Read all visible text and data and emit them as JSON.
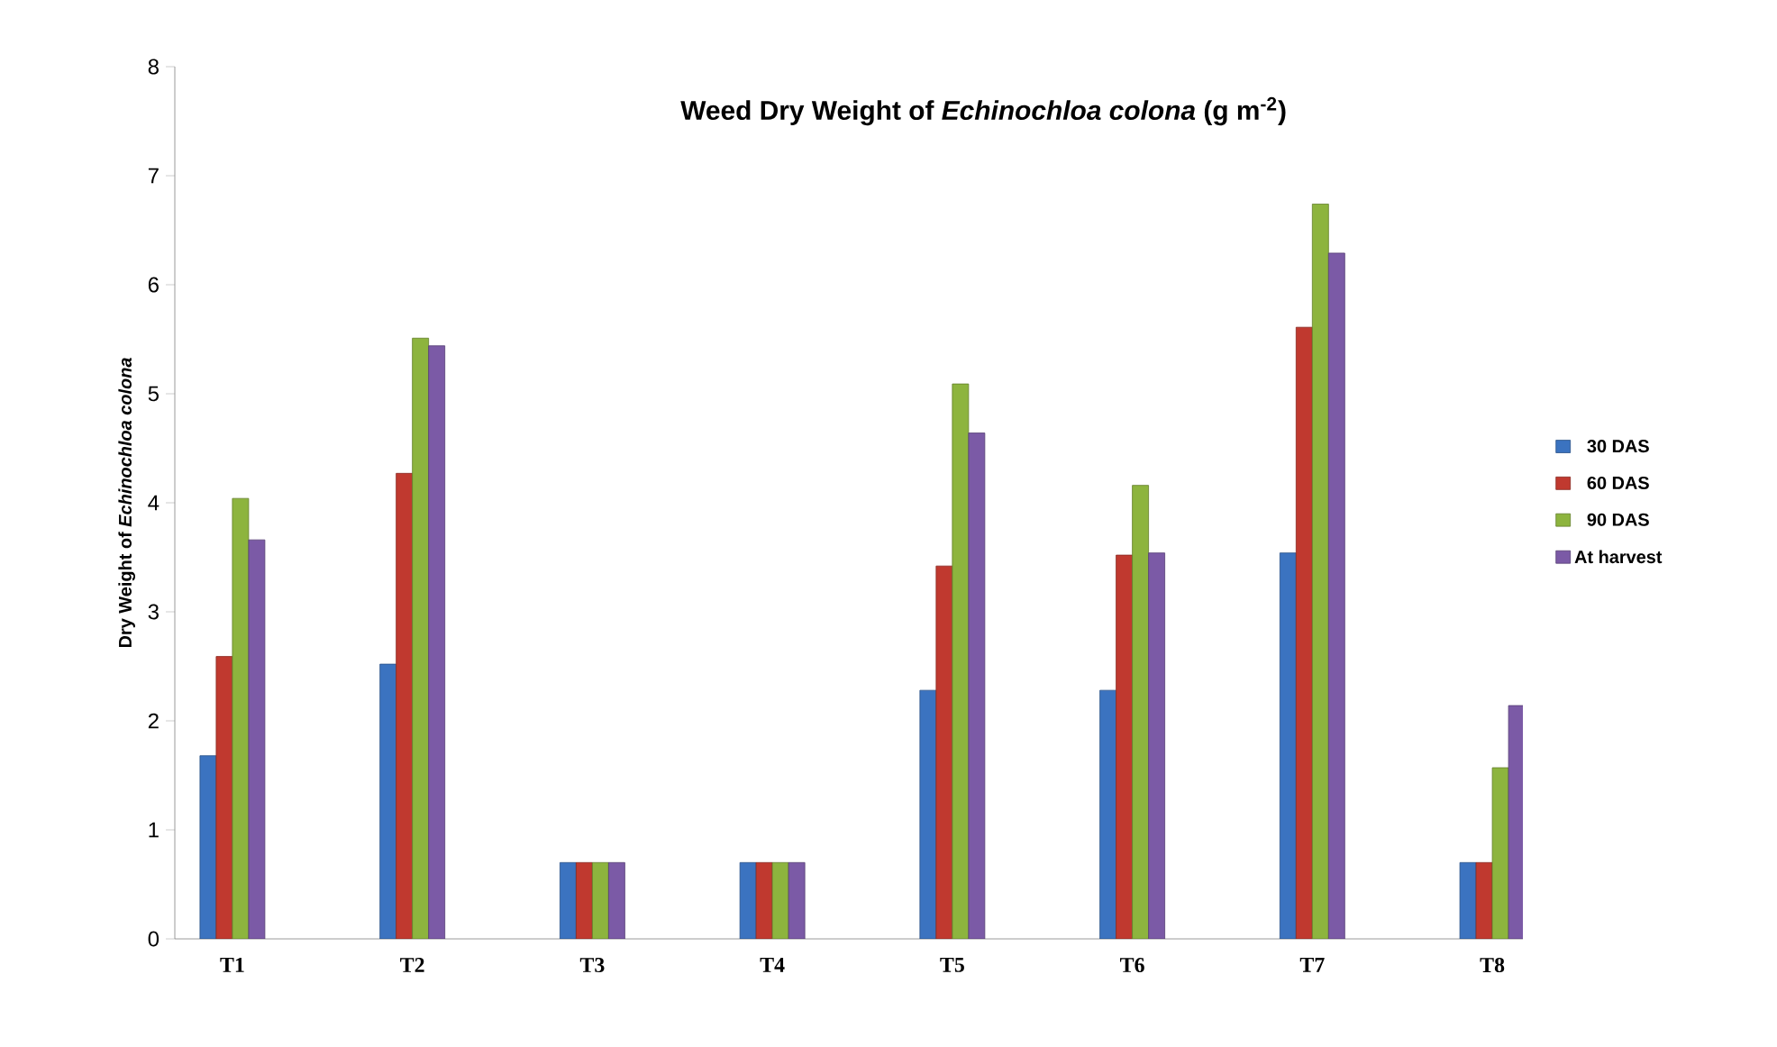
{
  "chart_data": {
    "type": "bar",
    "title": "Weed Dry Weight of *Echinochloa colona* (g m$^{-2}$)",
    "ylabel": "Dry Weight of *Echinochloa  colona*",
    "categories": [
      "T1",
      "T2",
      "T3",
      "T4",
      "T5",
      "T6",
      "T7",
      "T8"
    ],
    "series": [
      {
        "name": "30 DAS",
        "color": "#3b73c0",
        "values": [
          1.68,
          2.52,
          0.7,
          0.7,
          2.28,
          2.28,
          3.54,
          0.7
        ]
      },
      {
        "name": "60 DAS",
        "color": "#c0392f",
        "values": [
          2.59,
          4.27,
          0.7,
          0.7,
          3.42,
          3.52,
          5.61,
          0.7
        ]
      },
      {
        "name": "90 DAS",
        "color": "#8db43e",
        "values": [
          4.04,
          5.51,
          0.7,
          0.7,
          5.09,
          4.16,
          6.74,
          1.57
        ]
      },
      {
        "name": "At harvest",
        "color": "#7b5aa6",
        "values": [
          3.66,
          5.44,
          0.7,
          0.7,
          4.64,
          3.54,
          6.29,
          2.14
        ]
      }
    ],
    "ylim": [
      0,
      8
    ],
    "yticks": [
      0,
      1,
      2,
      3,
      4,
      5,
      6,
      7,
      8
    ],
    "legend": "right",
    "grid": false
  }
}
